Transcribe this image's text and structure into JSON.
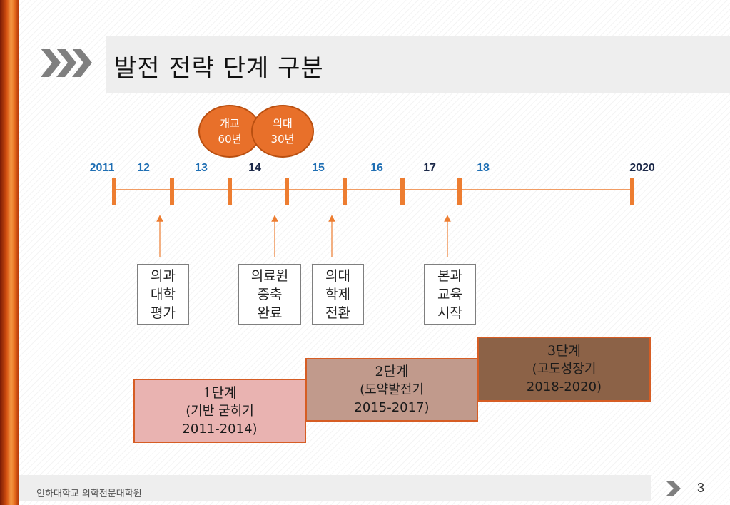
{
  "slide": {
    "title": "발전 전략 단계 구분",
    "page_number": "3"
  },
  "footer": {
    "institution": "인하대학교 의학전문대학원"
  },
  "milestones": [
    {
      "line1": "개교",
      "line2": "60년"
    },
    {
      "line1": "의대",
      "line2": "30년"
    }
  ],
  "timeline": {
    "years": [
      "2011",
      "12",
      "13",
      "14",
      "15",
      "16",
      "17",
      "18",
      "2020"
    ]
  },
  "events": [
    {
      "lines": [
        "의과",
        "대학",
        "평가"
      ]
    },
    {
      "lines": [
        "의료원",
        "증축",
        "완료"
      ]
    },
    {
      "lines": [
        "의대",
        "학제",
        "전환"
      ]
    },
    {
      "lines": [
        "본과",
        "교육",
        "시작"
      ]
    }
  ],
  "phases": [
    {
      "title": "1단계",
      "subtitle": "(기반 굳히기",
      "years": "2011-2014)"
    },
    {
      "title": "2단계",
      "subtitle": "(도약발전기",
      "years": "2015-2017)"
    },
    {
      "title": "3단계",
      "subtitle": "(고도성장기",
      "years": "2018-2020)"
    }
  ],
  "colors": {
    "accent_orange": "#ed7d31",
    "year_blue": "#1f6fb4",
    "year_dark": "#1b2848",
    "phase1": "#e9b3b1",
    "phase2": "#c19a8c",
    "phase3": "#8c6247"
  }
}
